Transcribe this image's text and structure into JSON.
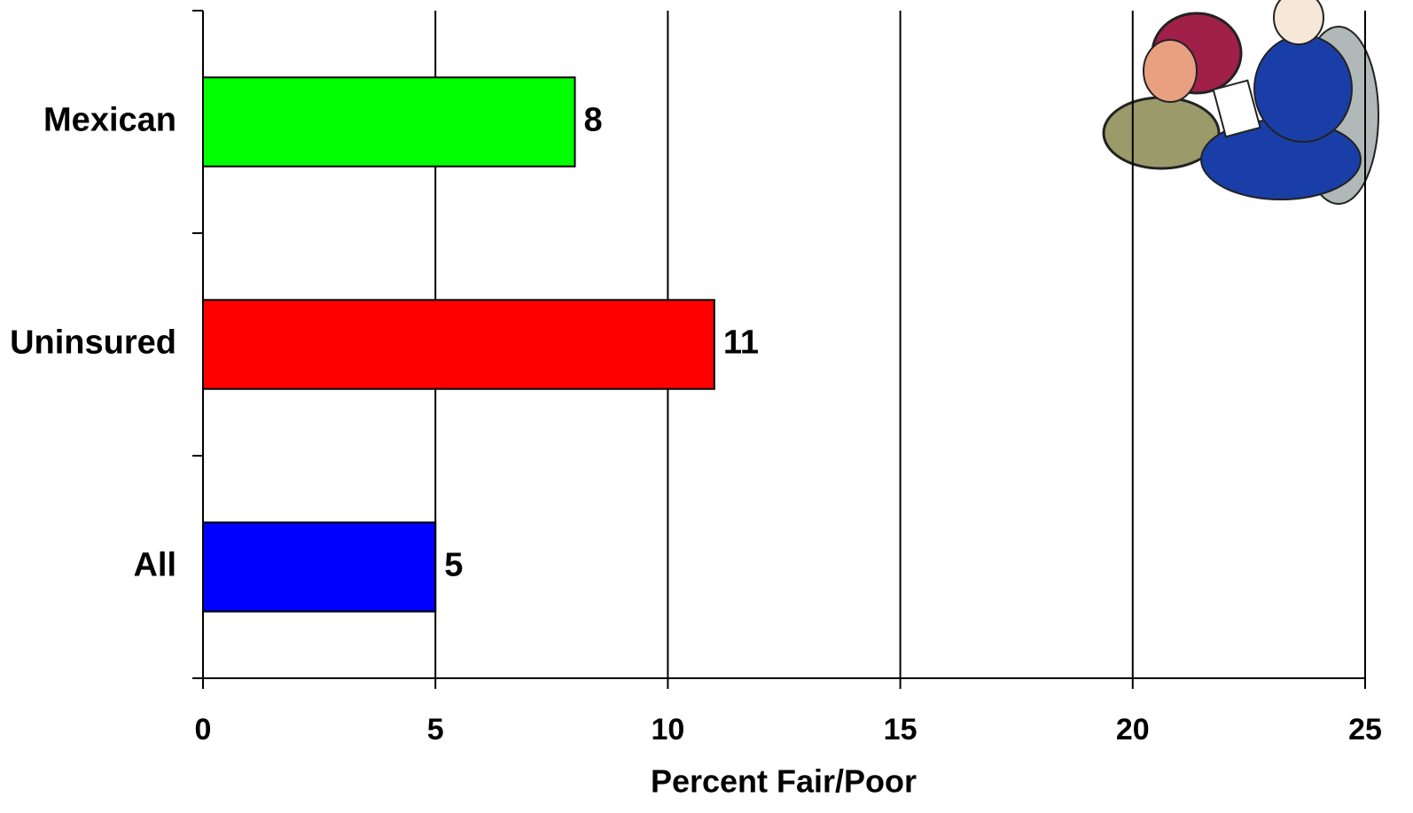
{
  "chart_data": {
    "type": "bar",
    "orientation": "horizontal",
    "categories": [
      "Mexican",
      "Uninsured",
      "All"
    ],
    "values": [
      8,
      11,
      5
    ],
    "colors": [
      "#00ff00",
      "#ff0000",
      "#0000ff"
    ],
    "xlabel": "Percent Fair/Poor",
    "xlim": [
      0,
      25
    ],
    "xticks": [
      0,
      5,
      10,
      15,
      20,
      25
    ],
    "grid": true
  }
}
